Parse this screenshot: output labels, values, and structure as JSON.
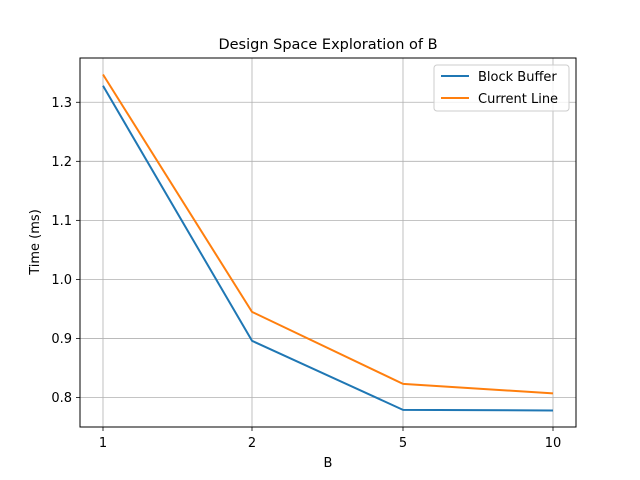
{
  "chart_data": {
    "type": "line",
    "title": "Design Space Exploration of B",
    "xlabel": "B",
    "ylabel": "Time (ms)",
    "categories": [
      "1",
      "2",
      "5",
      "10"
    ],
    "ylim": [
      0.75,
      1.375
    ],
    "yticks": [
      0.8,
      0.9,
      1.0,
      1.1,
      1.2,
      1.3
    ],
    "ytick_labels": [
      "0.8",
      "0.9",
      "1.0",
      "1.1",
      "1.2",
      "1.3"
    ],
    "grid": true,
    "legend_position": "top-right",
    "series": [
      {
        "name": "Block Buffer",
        "color": "#1f77b4",
        "values": [
          1.328,
          0.896,
          0.779,
          0.778
        ]
      },
      {
        "name": "Current Line",
        "color": "#ff7f0e",
        "values": [
          1.347,
          0.945,
          0.823,
          0.807
        ]
      }
    ]
  }
}
